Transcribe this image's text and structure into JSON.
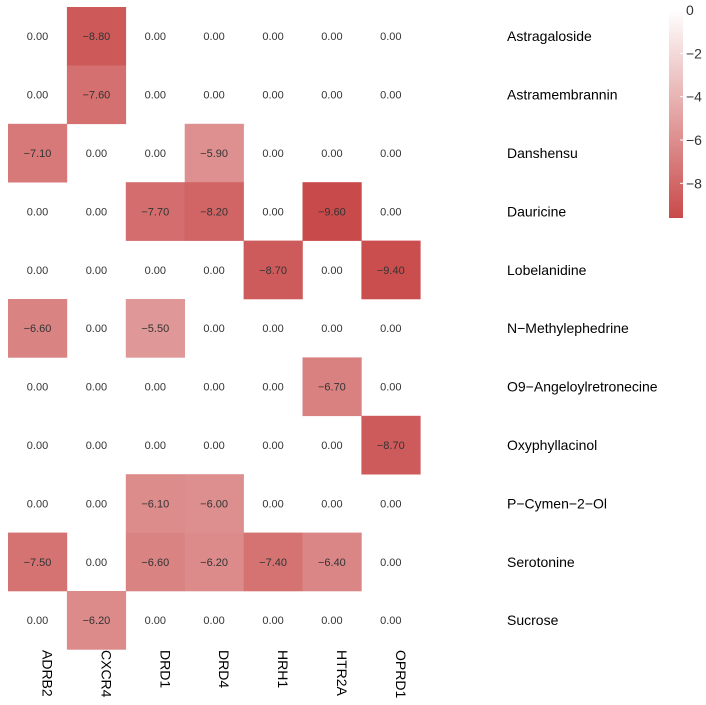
{
  "chart_data": {
    "type": "heatmap",
    "title": "",
    "xlabel": "",
    "ylabel": "",
    "columns": [
      "ADRB2",
      "CXCR4",
      "DRD1",
      "DRD4",
      "HRH1",
      "HTR2A",
      "OPRD1"
    ],
    "rows": [
      "Astragaloside",
      "Astramembrannin",
      "Danshensu",
      "Dauricine",
      "Lobelanidine",
      "N−Methylephedrine",
      "O9−Angeloylretronecine",
      "Oxyphyllacinol",
      "P−Cymen−2−Ol",
      "Serotonine",
      "Sucrose"
    ],
    "values": [
      [
        0,
        -8.8,
        0,
        0,
        0,
        0,
        0
      ],
      [
        0,
        -7.6,
        0,
        0,
        0,
        0,
        0
      ],
      [
        -7.1,
        0,
        0,
        -5.9,
        0,
        0,
        0
      ],
      [
        0,
        0,
        -7.7,
        -8.2,
        0,
        -9.6,
        0
      ],
      [
        0,
        0,
        0,
        0,
        -8.7,
        0,
        -9.4
      ],
      [
        -6.6,
        0,
        -5.5,
        0,
        0,
        0,
        0
      ],
      [
        0,
        0,
        0,
        0,
        0,
        -6.7,
        0
      ],
      [
        0,
        0,
        0,
        0,
        0,
        0,
        -8.7
      ],
      [
        0,
        0,
        -6.1,
        -6.0,
        0,
        0,
        0
      ],
      [
        -7.5,
        0,
        -6.6,
        -6.2,
        -7.4,
        -6.4,
        0
      ],
      [
        0,
        -6.2,
        0,
        0,
        0,
        0,
        0
      ]
    ],
    "value_labels": [
      [
        "0.00",
        "−8.80",
        "0.00",
        "0.00",
        "0.00",
        "0.00",
        "0.00"
      ],
      [
        "0.00",
        "−7.60",
        "0.00",
        "0.00",
        "0.00",
        "0.00",
        "0.00"
      ],
      [
        "−7.10",
        "0.00",
        "0.00",
        "−5.90",
        "0.00",
        "0.00",
        "0.00"
      ],
      [
        "0.00",
        "0.00",
        "−7.70",
        "−8.20",
        "0.00",
        "−9.60",
        "0.00"
      ],
      [
        "0.00",
        "0.00",
        "0.00",
        "0.00",
        "−8.70",
        "0.00",
        "−9.40"
      ],
      [
        "−6.60",
        "0.00",
        "−5.50",
        "0.00",
        "0.00",
        "0.00",
        "0.00"
      ],
      [
        "0.00",
        "0.00",
        "0.00",
        "0.00",
        "0.00",
        "−6.70",
        "0.00"
      ],
      [
        "0.00",
        "0.00",
        "0.00",
        "0.00",
        "0.00",
        "0.00",
        "−8.70"
      ],
      [
        "0.00",
        "0.00",
        "−6.10",
        "−6.00",
        "0.00",
        "0.00",
        "0.00"
      ],
      [
        "−7.50",
        "0.00",
        "−6.60",
        "−6.20",
        "−7.40",
        "−6.40",
        "0.00"
      ],
      [
        "0.00",
        "−6.20",
        "0.00",
        "0.00",
        "0.00",
        "0.00",
        "0.00"
      ]
    ],
    "color_scale": {
      "min": -9.6,
      "max": 0,
      "low_color": "#c94a4a",
      "high_color": "#ffffff"
    },
    "colorbar": {
      "ticks": [
        0,
        -2,
        -4,
        -6,
        -8
      ],
      "tick_labels": [
        "0",
        "−2",
        "−4",
        "−6",
        "−8"
      ]
    },
    "legend_position": "right",
    "grid": false
  }
}
